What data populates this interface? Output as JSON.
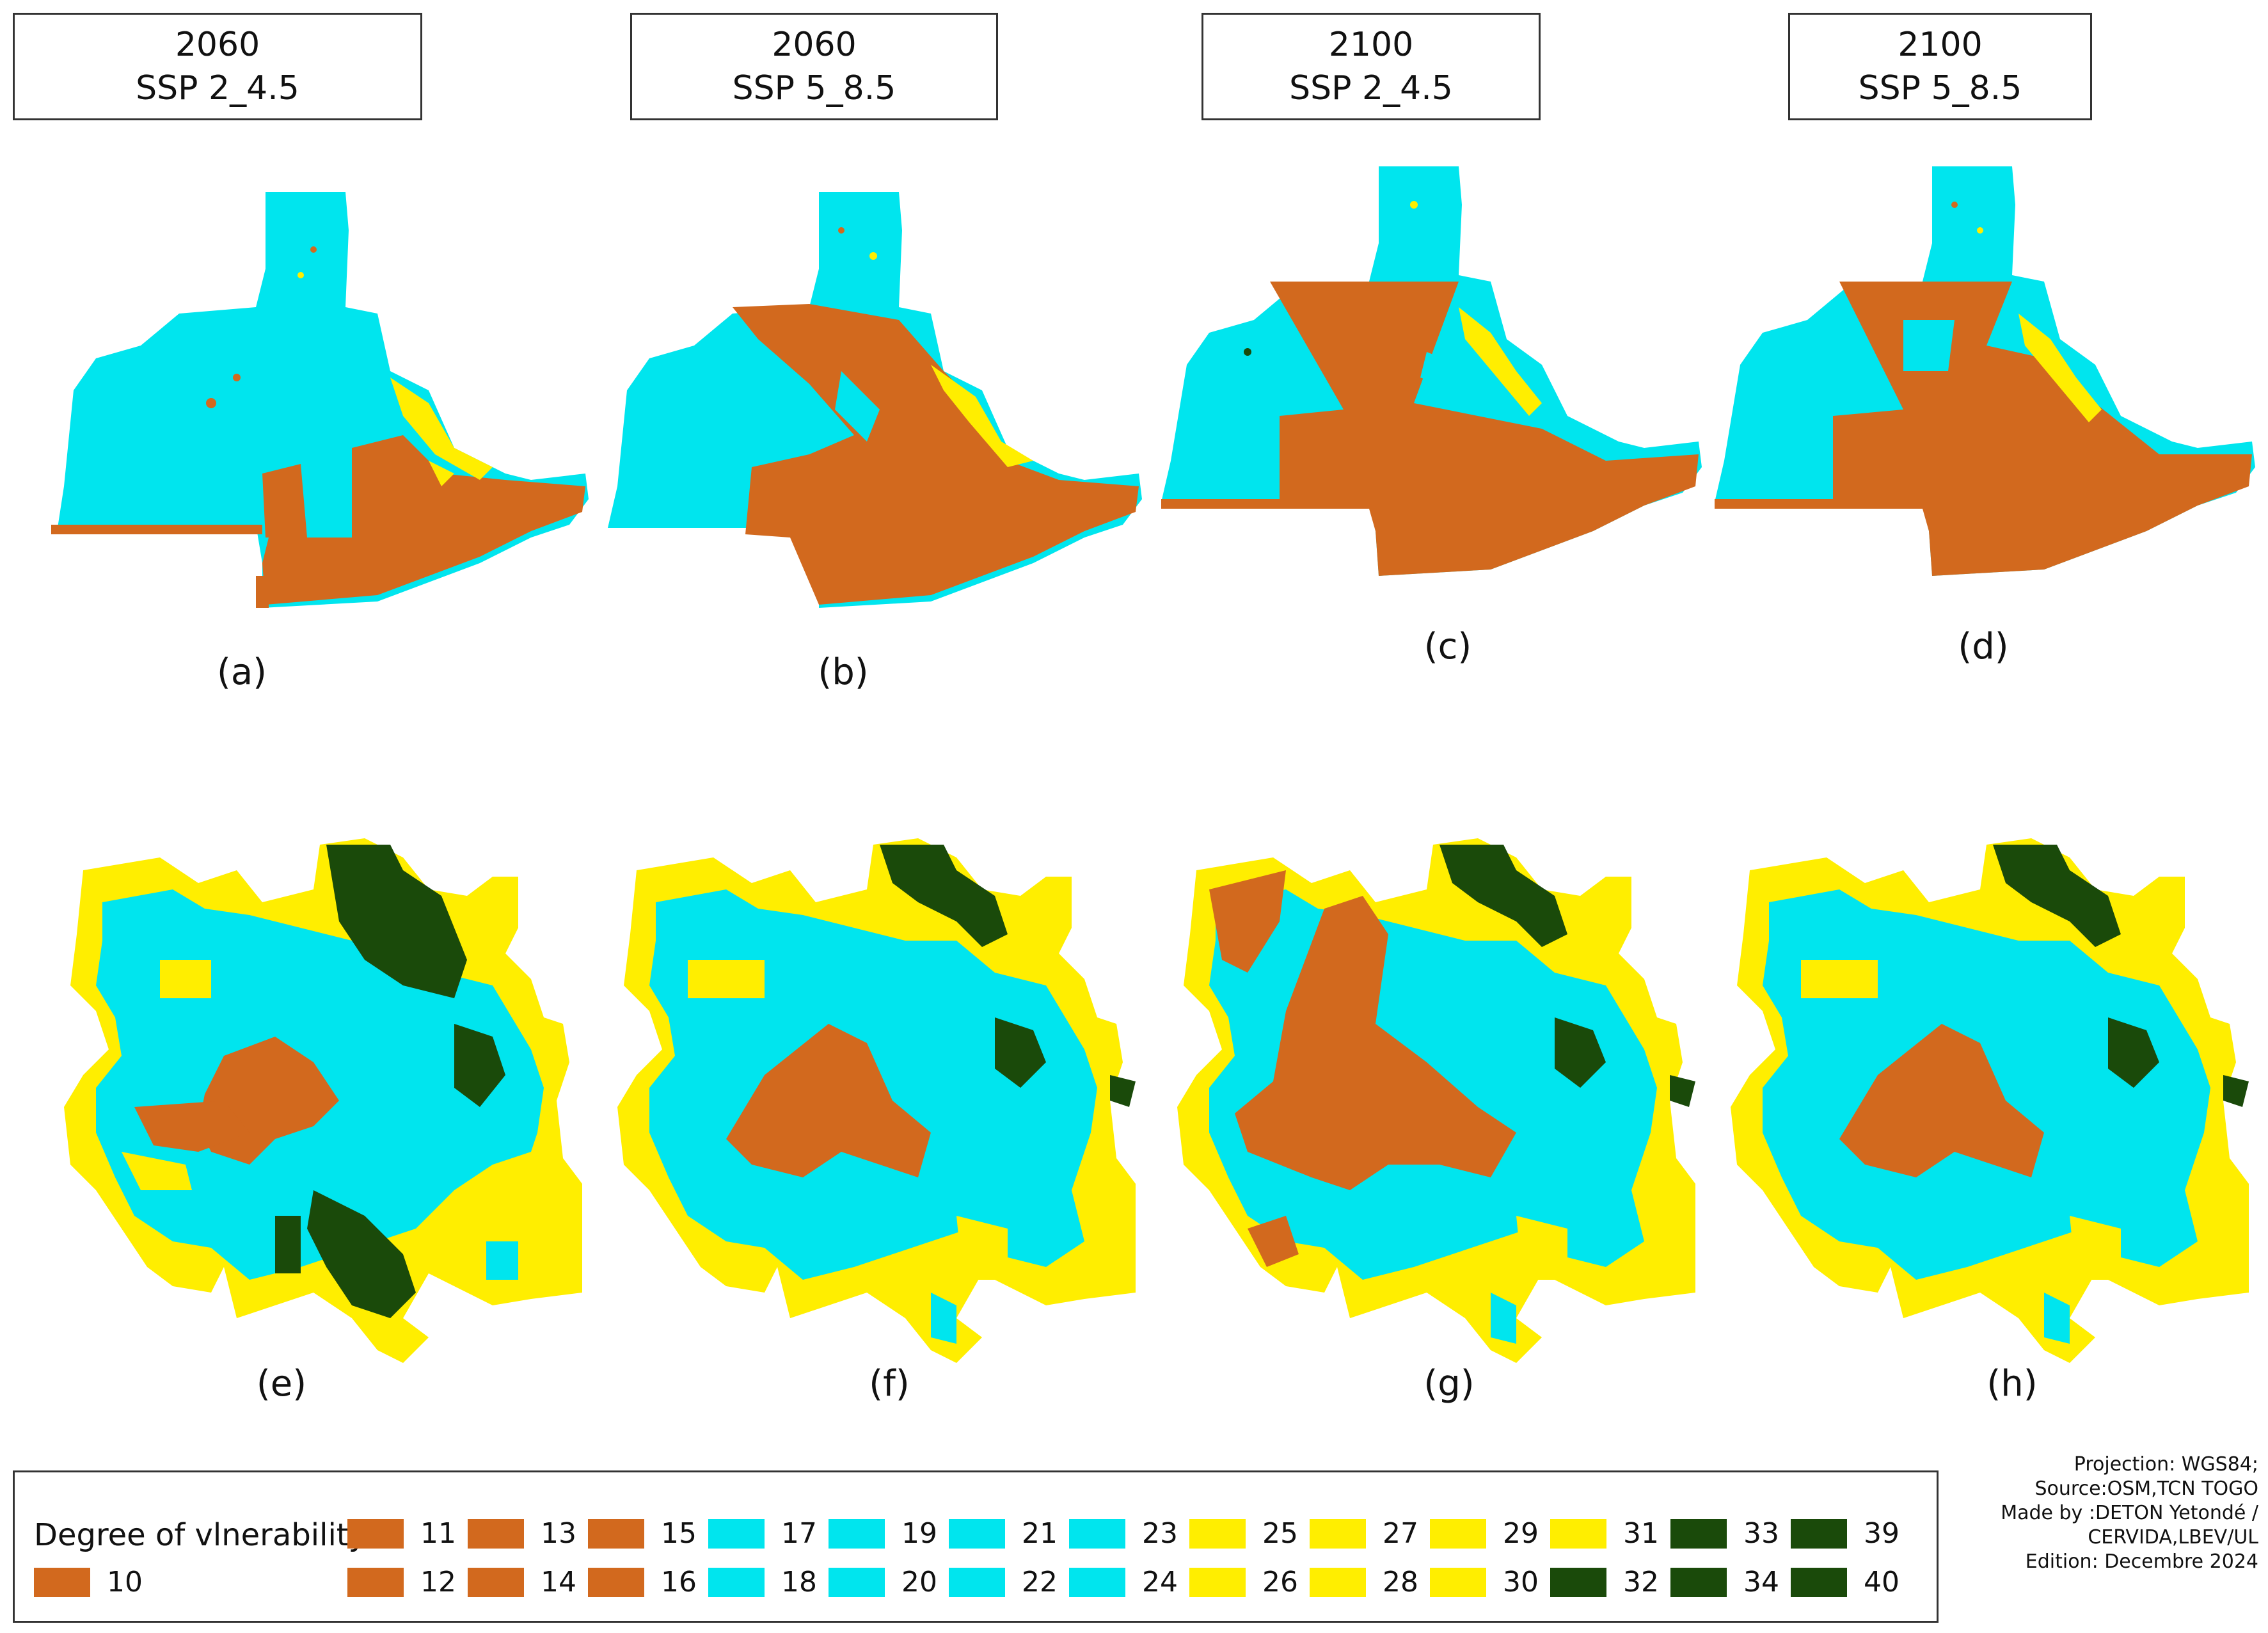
{
  "colors": {
    "class_10_16": "#d2691e",
    "class_17_24": "#00e5ee",
    "class_25_31": "#ffee00",
    "class_32_40": "#1a4a0a"
  },
  "top_row": [
    {
      "year": "2060",
      "scenario": "SSP 2_4.5",
      "label": "(a)"
    },
    {
      "year": "2060",
      "scenario": "SSP 5_8.5",
      "label": "(b)"
    },
    {
      "year": "2100",
      "scenario": "SSP 2_4.5",
      "label": "(c)"
    },
    {
      "year": "2100",
      "scenario": "SSP 5_8.5",
      "label": "(d)"
    }
  ],
  "bottom_row": [
    {
      "label": "(e)"
    },
    {
      "label": "(f)"
    },
    {
      "label": "(g)"
    },
    {
      "label": "(h)"
    }
  ],
  "legend": {
    "title": "Degree of vlnerability",
    "items": [
      {
        "value": "10",
        "color": "#d2691e"
      },
      {
        "value": "11",
        "color": "#d2691e"
      },
      {
        "value": "12",
        "color": "#d2691e"
      },
      {
        "value": "13",
        "color": "#d2691e"
      },
      {
        "value": "14",
        "color": "#d2691e"
      },
      {
        "value": "15",
        "color": "#d2691e"
      },
      {
        "value": "16",
        "color": "#d2691e"
      },
      {
        "value": "17",
        "color": "#00e5ee"
      },
      {
        "value": "18",
        "color": "#00e5ee"
      },
      {
        "value": "19",
        "color": "#00e5ee"
      },
      {
        "value": "20",
        "color": "#00e5ee"
      },
      {
        "value": "21",
        "color": "#00e5ee"
      },
      {
        "value": "22",
        "color": "#00e5ee"
      },
      {
        "value": "23",
        "color": "#00e5ee"
      },
      {
        "value": "24",
        "color": "#00e5ee"
      },
      {
        "value": "25",
        "color": "#ffee00"
      },
      {
        "value": "26",
        "color": "#ffee00"
      },
      {
        "value": "27",
        "color": "#ffee00"
      },
      {
        "value": "28",
        "color": "#ffee00"
      },
      {
        "value": "29",
        "color": "#ffee00"
      },
      {
        "value": "30",
        "color": "#ffee00"
      },
      {
        "value": "31",
        "color": "#ffee00"
      },
      {
        "value": "32",
        "color": "#1a4a0a"
      },
      {
        "value": "33",
        "color": "#1a4a0a"
      },
      {
        "value": "34",
        "color": "#1a4a0a"
      },
      {
        "value": "39",
        "color": "#1a4a0a"
      },
      {
        "value": "40",
        "color": "#1a4a0a"
      }
    ]
  },
  "credits": {
    "projection": "Projection: WGS84;",
    "source": "Source:OSM,TCN TOGO",
    "made_by_1": "Made by :DETON Yetondé /",
    "made_by_2": "CERVIDA,LBEV/UL",
    "edition": "Edition: Decembre 2024"
  }
}
